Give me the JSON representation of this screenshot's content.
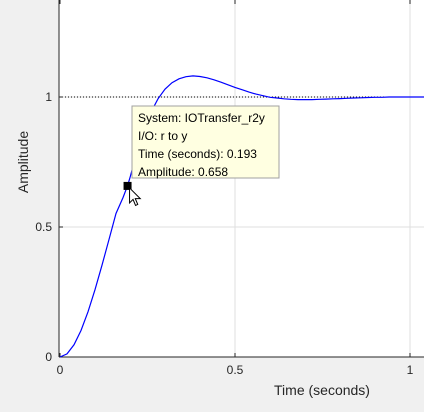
{
  "figure": {
    "background": "#f0f0f0",
    "axes_background": "#ffffff"
  },
  "chart_data": {
    "type": "line",
    "title": "",
    "xlabel": "Time (seconds)",
    "ylabel": "Amplitude",
    "xlim": [
      0,
      1.05
    ],
    "ylim": [
      0,
      1.4
    ],
    "xticks": [
      {
        "value": 0,
        "label": "0"
      },
      {
        "value": 0.5,
        "label": "0.5"
      },
      {
        "value": 1,
        "label": "1"
      }
    ],
    "yticks": [
      {
        "value": 0,
        "label": "0"
      },
      {
        "value": 0.5,
        "label": "0.5"
      },
      {
        "value": 1,
        "label": "1"
      }
    ],
    "grid": true,
    "reference_line": {
      "y": 1,
      "style": "dotted",
      "color": "#000000"
    },
    "series": [
      {
        "color": "#0000ff",
        "x": [
          0,
          0.02,
          0.04,
          0.06,
          0.08,
          0.1,
          0.12,
          0.14,
          0.16,
          0.18,
          0.193,
          0.2,
          0.22,
          0.24,
          0.26,
          0.28,
          0.3,
          0.32,
          0.34,
          0.36,
          0.38,
          0.4,
          0.42,
          0.44,
          0.46,
          0.48,
          0.5,
          0.52,
          0.54,
          0.56,
          0.58,
          0.6,
          0.62,
          0.64,
          0.66,
          0.68,
          0.7,
          0.72,
          0.74,
          0.76,
          0.78,
          0.8,
          0.82,
          0.84,
          0.86,
          0.88,
          0.9,
          0.92,
          0.94,
          0.96,
          0.98,
          1.0,
          1.02,
          1.05
        ],
        "y": [
          0,
          0.012,
          0.047,
          0.102,
          0.174,
          0.259,
          0.353,
          0.452,
          0.552,
          0.613,
          0.658,
          0.69,
          0.79,
          0.875,
          0.942,
          0.993,
          1.03,
          1.055,
          1.07,
          1.078,
          1.081,
          1.079,
          1.074,
          1.066,
          1.057,
          1.047,
          1.037,
          1.028,
          1.019,
          1.011,
          1.005,
          0.999,
          0.996,
          0.993,
          0.991,
          0.99,
          0.99,
          0.99,
          0.991,
          0.992,
          0.993,
          0.994,
          0.995,
          0.996,
          0.997,
          0.998,
          0.999,
          0.999,
          1.0,
          1.0,
          1.0,
          1.0,
          1.0,
          1.0
        ]
      }
    ],
    "datatip": {
      "x": 0.193,
      "y": 0.658,
      "lines": [
        "System: IOTransfer_r2y",
        "I/O: r to y",
        "Time (seconds): 0.193",
        "Amplitude: 0.658"
      ],
      "background": "#ffffe1"
    }
  }
}
